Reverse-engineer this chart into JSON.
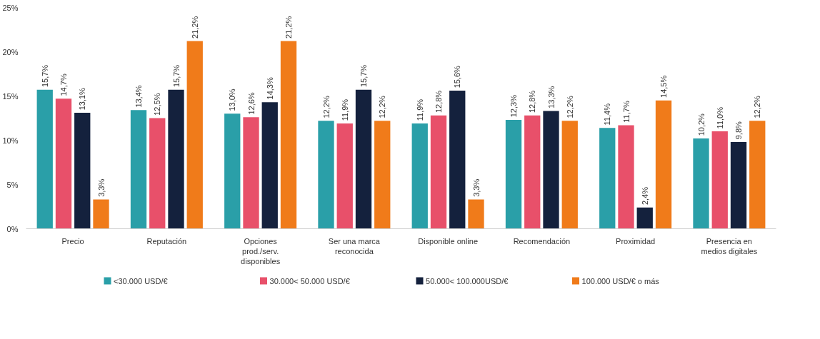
{
  "chart_data": {
    "type": "bar",
    "categories": [
      "Precio",
      "Reputación",
      "Opciones\nprod./serv.\ndisponibles",
      "Ser una marca\nreconocida",
      "Disponible online",
      "Recomendación",
      "Proximidad",
      "Presencia en\nmedios digitales"
    ],
    "series": [
      {
        "name": "<30.000 USD/€",
        "color": "#2a9fa8",
        "values": [
          15.7,
          13.4,
          13.0,
          12.2,
          11.9,
          12.3,
          11.4,
          10.2
        ],
        "value_labels": [
          "15,7%",
          "13,4%",
          "13,0%",
          "12,2%",
          "11,9%",
          "12,3%",
          "11,4%",
          "10,2%"
        ]
      },
      {
        "name": "30.000< 50.000 USD/€",
        "color": "#e8506a",
        "values": [
          14.7,
          12.5,
          12.6,
          11.9,
          12.8,
          12.8,
          11.7,
          11.0
        ],
        "value_labels": [
          "14,7%",
          "12,5%",
          "12,6%",
          "11,9%",
          "12,8%",
          "12,8%",
          "11,7%",
          "11,0%"
        ]
      },
      {
        "name": "50.000< 100.000USD/€",
        "color": "#14213d",
        "values": [
          13.1,
          15.7,
          14.3,
          15.7,
          15.6,
          13.3,
          2.4,
          9.8
        ],
        "value_labels": [
          "13,1%",
          "15,7%",
          "14,3%",
          "15,7%",
          "15,6%",
          "13,3%",
          "2,4%",
          "9,8%"
        ]
      },
      {
        "name": "100.000 USD/€ o más",
        "color": "#f07b1a",
        "values": [
          3.3,
          21.2,
          21.2,
          12.2,
          3.3,
          12.2,
          14.5,
          12.2
        ],
        "value_labels": [
          "3,3%",
          "21,2%",
          "21,2%",
          "12,2%",
          "3,3%",
          "12,2%",
          "14,5%",
          "12,2%"
        ]
      }
    ],
    "ylim": [
      0,
      25
    ],
    "yticks": [
      {
        "value": 0,
        "label": "0%"
      },
      {
        "value": 5,
        "label": "5%"
      },
      {
        "value": 10,
        "label": "10%"
      },
      {
        "value": 15,
        "label": "15%"
      },
      {
        "value": 20,
        "label": "20%"
      },
      {
        "value": 25,
        "label": "25%"
      }
    ],
    "grid": false,
    "legend": "bottom"
  }
}
